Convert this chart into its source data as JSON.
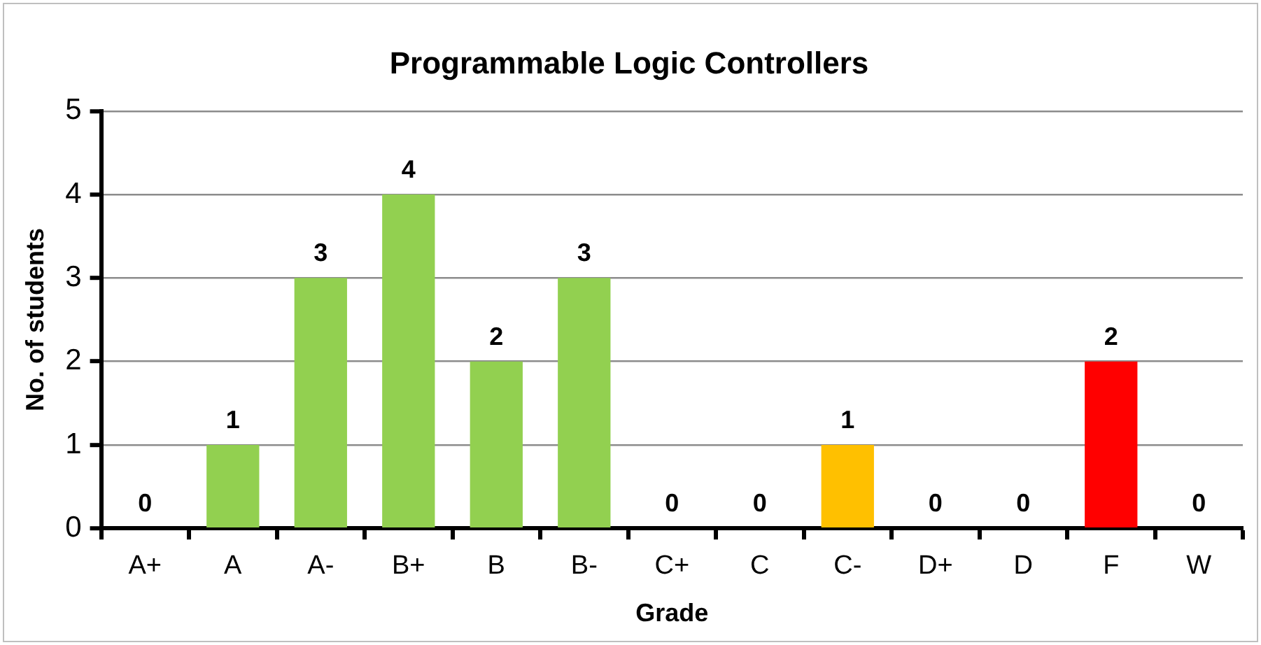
{
  "chart_data": {
    "type": "bar",
    "title": "Programmable Logic Controllers",
    "xlabel": "Grade",
    "ylabel": "No. of students",
    "categories": [
      "A+",
      "A",
      "A-",
      "B+",
      "B",
      "B-",
      "C+",
      "C",
      "C-",
      "D+",
      "D",
      "F",
      "W"
    ],
    "values": [
      0,
      1,
      3,
      4,
      2,
      3,
      0,
      0,
      1,
      0,
      0,
      2,
      0
    ],
    "colors": [
      "#92d050",
      "#92d050",
      "#92d050",
      "#92d050",
      "#92d050",
      "#92d050",
      "#92d050",
      "#92d050",
      "#ffc000",
      "#92d050",
      "#92d050",
      "#ff0000",
      "#92d050"
    ],
    "ylim": [
      0,
      5
    ],
    "yticks": [
      0,
      1,
      2,
      3,
      4,
      5
    ],
    "grid": "y",
    "data_labels": true
  }
}
